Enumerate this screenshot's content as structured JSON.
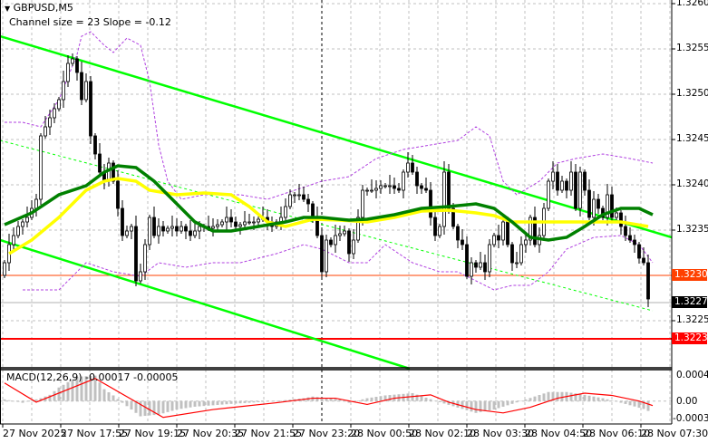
{
  "header": {
    "symbol": "GBPUSD,M5",
    "channel_info": "Channel size = 23 Slope = -0.12"
  },
  "macd": {
    "label": "MACD(12,26,9) -0.00017 -0.00005",
    "scale": [
      "0.00046",
      "0.00",
      "-0.00031"
    ],
    "range": [
      -0.00031,
      0.00046
    ]
  },
  "colors": {
    "up_candle": "#ffffff",
    "down_candle": "#000000",
    "channel": "#00ff00",
    "ma_fast": "#008000",
    "ma_slow": "#ffff00",
    "bands": "#b040e0",
    "macd_hist": "#c0c0c0",
    "macd_signal": "#ff0000",
    "level_orange": "#ff4000",
    "level_red": "#ff0000"
  },
  "chart_data": {
    "type": "candlestick",
    "symbol": "GBPUSD",
    "timeframe": "M5",
    "ylim": [
      1.32195,
      1.32605
    ],
    "y_ticks": [
      "1.3260",
      "1.3255",
      "1.3250",
      "1.3245",
      "1.3240",
      "1.3235",
      "1.3225"
    ],
    "x_ticks": [
      "27 Nov 2025",
      "27 Nov 17:55",
      "27 Nov 19:15",
      "27 Nov 20:35",
      "27 Nov 21:55",
      "27 Nov 23:20",
      "28 Nov 00:50",
      "28 Nov 02:10",
      "28 Nov 03:30",
      "28 Nov 04:50",
      "28 Nov 06:10",
      "28 Nov 07:30"
    ],
    "levels": [
      {
        "price": "1.3230",
        "color": "#ff4000"
      },
      {
        "price": "1.3227",
        "color": "#000000"
      },
      {
        "price": "1.3223",
        "color": "#ff0000"
      }
    ],
    "first_open": 1.323,
    "closes": [
      1.32314,
      1.32334,
      1.32344,
      1.32354,
      1.32359,
      1.32364,
      1.32374,
      1.32384,
      1.32454,
      1.32464,
      1.32474,
      1.32484,
      1.32494,
      1.32514,
      1.32534,
      1.32539,
      1.32524,
      1.32494,
      1.32514,
      1.32454,
      1.32434,
      1.32414,
      1.32404,
      1.32424,
      1.32404,
      1.32374,
      1.32344,
      1.32349,
      1.32354,
      1.32294,
      1.32304,
      1.32334,
      1.32364,
      1.32344,
      1.32354,
      1.32349,
      1.32352,
      1.32354,
      1.32349,
      1.32354,
      1.32349,
      1.32344,
      1.32349,
      1.32354,
      1.32354,
      1.32352,
      1.32354,
      1.32356,
      1.32359,
      1.32364,
      1.32359,
      1.32354,
      1.32356,
      1.32359,
      1.32359,
      1.32359,
      1.32362,
      1.32364,
      1.32359,
      1.32354,
      1.32359,
      1.32364,
      1.32376,
      1.32389,
      1.32389,
      1.32389,
      1.32384,
      1.32379,
      1.32364,
      1.32344,
      1.32304,
      1.32339,
      1.32334,
      1.32344,
      1.32346,
      1.32349,
      1.32324,
      1.32339,
      1.32364,
      1.32394,
      1.32394,
      1.32394,
      1.32396,
      1.32399,
      1.32399,
      1.32399,
      1.32396,
      1.32394,
      1.32414,
      1.32424,
      1.32414,
      1.32399,
      1.32396,
      1.32394,
      1.32364,
      1.32344,
      1.32354,
      1.32414,
      1.32374,
      1.32354,
      1.32339,
      1.32334,
      1.32299,
      1.32314,
      1.32309,
      1.32314,
      1.32304,
      1.32334,
      1.32344,
      1.32339,
      1.32359,
      1.32334,
      1.32314,
      1.32314,
      1.32334,
      1.32339,
      1.32364,
      1.32334,
      1.32344,
      1.32374,
      1.32404,
      1.32414,
      1.32394,
      1.32404,
      1.32394,
      1.32414,
      1.32374,
      1.32414,
      1.32394,
      1.32364,
      1.32384,
      1.32374,
      1.32364,
      1.32389,
      1.32364,
      1.32369,
      1.32354,
      1.32344,
      1.32339,
      1.32334,
      1.32319,
      1.32314,
      1.32274
    ],
    "channel": {
      "upper": [
        1.32564,
        1.32342
      ],
      "lower": [
        1.32339,
        1.32197
      ],
      "middle": [
        1.32449,
        1.32261
      ]
    },
    "ma_fast": [
      [
        0,
        1.32356
      ],
      [
        6,
        1.32369
      ],
      [
        12,
        1.32389
      ],
      [
        18,
        1.32399
      ],
      [
        22,
        1.32414
      ],
      [
        25,
        1.32421
      ],
      [
        29,
        1.32419
      ],
      [
        33,
        1.32404
      ],
      [
        38,
        1.32379
      ],
      [
        42,
        1.32359
      ],
      [
        46,
        1.32349
      ],
      [
        50,
        1.32349
      ],
      [
        56,
        1.32354
      ],
      [
        62,
        1.32359
      ],
      [
        66,
        1.32364
      ],
      [
        70,
        1.32364
      ],
      [
        76,
        1.32361
      ],
      [
        80,
        1.32362
      ],
      [
        86,
        1.32367
      ],
      [
        92,
        1.32374
      ],
      [
        98,
        1.32376
      ],
      [
        104,
        1.32379
      ],
      [
        108,
        1.32374
      ],
      [
        112,
        1.32359
      ],
      [
        116,
        1.32342
      ],
      [
        120,
        1.32339
      ],
      [
        124,
        1.32342
      ],
      [
        128,
        1.32354
      ],
      [
        132,
        1.32367
      ],
      [
        136,
        1.32374
      ],
      [
        140,
        1.32374
      ],
      [
        143,
        1.32367
      ]
    ],
    "ma_slow": [
      [
        1,
        1.32324
      ],
      [
        6,
        1.32339
      ],
      [
        12,
        1.32364
      ],
      [
        18,
        1.32394
      ],
      [
        22,
        1.32404
      ],
      [
        25,
        1.32407
      ],
      [
        29,
        1.32404
      ],
      [
        32,
        1.32394
      ],
      [
        38,
        1.32389
      ],
      [
        44,
        1.32391
      ],
      [
        50,
        1.32389
      ],
      [
        54,
        1.32376
      ],
      [
        58,
        1.32359
      ],
      [
        62,
        1.32354
      ],
      [
        68,
        1.32362
      ],
      [
        74,
        1.32361
      ],
      [
        80,
        1.32359
      ],
      [
        86,
        1.32364
      ],
      [
        92,
        1.32371
      ],
      [
        98,
        1.32372
      ],
      [
        104,
        1.32369
      ],
      [
        108,
        1.32366
      ],
      [
        112,
        1.32359
      ],
      [
        120,
        1.32359
      ],
      [
        128,
        1.32359
      ],
      [
        136,
        1.32359
      ],
      [
        142,
        1.32354
      ]
    ],
    "bands_upper": [
      [
        0,
        1.32469
      ],
      [
        4,
        1.32469
      ],
      [
        8,
        1.32464
      ],
      [
        12,
        1.32494
      ],
      [
        16,
        1.32544
      ],
      [
        17,
        1.32564
      ],
      [
        19,
        1.32569
      ],
      [
        22,
        1.32554
      ],
      [
        24,
        1.32546
      ],
      [
        27,
        1.32562
      ],
      [
        30,
        1.32554
      ],
      [
        32,
        1.32514
      ],
      [
        34,
        1.32444
      ],
      [
        36,
        1.32404
      ],
      [
        39,
        1.32384
      ],
      [
        44,
        1.32389
      ],
      [
        52,
        1.32389
      ],
      [
        58,
        1.32384
      ],
      [
        64,
        1.32394
      ],
      [
        70,
        1.32404
      ],
      [
        76,
        1.32409
      ],
      [
        82,
        1.32429
      ],
      [
        88,
        1.32439
      ],
      [
        94,
        1.32444
      ],
      [
        100,
        1.32449
      ],
      [
        104,
        1.32464
      ],
      [
        107,
        1.32454
      ],
      [
        110,
        1.32404
      ],
      [
        113,
        1.32389
      ],
      [
        118,
        1.32404
      ],
      [
        122,
        1.32424
      ],
      [
        126,
        1.32429
      ],
      [
        132,
        1.32434
      ],
      [
        138,
        1.32429
      ],
      [
        143,
        1.32424
      ]
    ],
    "bands_lower": [
      [
        4,
        1.32284
      ],
      [
        12,
        1.32284
      ],
      [
        18,
        1.32314
      ],
      [
        24,
        1.32304
      ],
      [
        30,
        1.32299
      ],
      [
        34,
        1.32314
      ],
      [
        40,
        1.32309
      ],
      [
        46,
        1.32314
      ],
      [
        52,
        1.32314
      ],
      [
        60,
        1.32324
      ],
      [
        66,
        1.32334
      ],
      [
        70,
        1.32329
      ],
      [
        76,
        1.32314
      ],
      [
        80,
        1.32314
      ],
      [
        84,
        1.32334
      ],
      [
        90,
        1.32314
      ],
      [
        96,
        1.32304
      ],
      [
        100,
        1.32304
      ],
      [
        104,
        1.32294
      ],
      [
        108,
        1.32284
      ],
      [
        112,
        1.32289
      ],
      [
        116,
        1.32289
      ],
      [
        120,
        1.32304
      ],
      [
        124,
        1.32329
      ],
      [
        130,
        1.32342
      ],
      [
        136,
        1.32344
      ],
      [
        140,
        1.32334
      ],
      [
        143,
        1.32314
      ]
    ],
    "macd_hist": [
      [
        0,
        3e-05
      ],
      [
        4,
        -3e-05
      ],
      [
        8,
        5e-05
      ],
      [
        10,
        0.00011
      ],
      [
        12,
        0.00024
      ],
      [
        16,
        0.00043
      ],
      [
        20,
        0.00045
      ],
      [
        22,
        0.00021
      ],
      [
        24,
        0.0001
      ],
      [
        26,
        -3e-05
      ],
      [
        30,
        -0.00027
      ],
      [
        34,
        -0.00024
      ],
      [
        38,
        -0.00015
      ],
      [
        42,
        -0.0001
      ],
      [
        50,
        -5e-05
      ],
      [
        60,
        0.0
      ],
      [
        66,
        5e-05
      ],
      [
        68,
        8e-05
      ],
      [
        74,
        3e-05
      ],
      [
        76,
        -3e-05
      ],
      [
        80,
        5e-05
      ],
      [
        84,
        0.0001
      ],
      [
        90,
        0.00014
      ],
      [
        96,
        -2e-05
      ],
      [
        104,
        -0.00021
      ],
      [
        108,
        -0.00015
      ],
      [
        112,
        -5e-05
      ],
      [
        120,
        0.00016
      ],
      [
        124,
        0.00016
      ],
      [
        128,
        0.00011
      ],
      [
        132,
        5e-05
      ],
      [
        136,
        -3e-05
      ],
      [
        141,
        -0.00014
      ],
      [
        143,
        -0.00021
      ]
    ],
    "macd_signal": [
      [
        0,
        0.00032
      ],
      [
        7,
        -2e-05
      ],
      [
        20,
        0.0004
      ],
      [
        35,
        -0.00029
      ],
      [
        46,
        -0.00015
      ],
      [
        60,
        -3e-05
      ],
      [
        68,
        5e-05
      ],
      [
        73,
        5e-05
      ],
      [
        80,
        -6e-05
      ],
      [
        86,
        5e-05
      ],
      [
        94,
        0.00011
      ],
      [
        98,
        -2e-05
      ],
      [
        104,
        -0.00015
      ],
      [
        110,
        -0.00021
      ],
      [
        116,
        -0.00011
      ],
      [
        122,
        5e-05
      ],
      [
        128,
        0.00014
      ],
      [
        134,
        0.0001
      ],
      [
        140,
        0.0
      ],
      [
        143,
        -8e-05
      ]
    ]
  }
}
